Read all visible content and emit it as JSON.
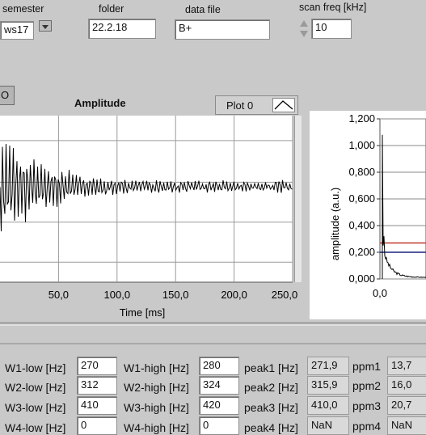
{
  "top": {
    "semester_label": "semester",
    "semester_value": "ws17",
    "folder_label": "folder",
    "folder_value": "22.2.18",
    "datafile_label": "data file",
    "datafile_value": "B+",
    "scanfreq_label": "scan freq [kHz]",
    "scanfreq_value": "10"
  },
  "stop_button_label": "O",
  "amplitude_chart": {
    "title": "Amplitude",
    "legend_label": "Plot 0",
    "chart_data": {
      "type": "line",
      "title": "Amplitude",
      "xlabel": "Time [ms]",
      "ylabel": "",
      "x_ticks": [
        "50,0",
        "100,0",
        "150,0",
        "200,0",
        "250,0"
      ],
      "xlim": [
        0,
        250
      ],
      "series": [
        {
          "name": "Plot 0",
          "description_shape": "damped oscillation settling to constant level"
        }
      ],
      "grid": true
    }
  },
  "spectrum_chart": {
    "chart_data": {
      "type": "line",
      "ylabel": "amplitude (a.u.)",
      "y_ticks": [
        "1,200",
        "1,000",
        "0,800",
        "0,600",
        "0,400",
        "0,200",
        "0,000"
      ],
      "ylim": [
        0,
        1.2
      ],
      "x_ticks": [
        "0,0"
      ],
      "markers": [
        {
          "y": 0.27,
          "color": "#c0392b"
        },
        {
          "y": 0.2,
          "color": "#1a237e"
        }
      ],
      "grid": true
    }
  },
  "windows": [
    {
      "low_label": "W1-low [Hz]",
      "low": "270",
      "high_label": "W1-high [Hz]",
      "high": "280",
      "peak_label": "peak1 [Hz]",
      "peak": "271,9",
      "ppm_label": "ppm1",
      "ppm": "13,7"
    },
    {
      "low_label": "W2-low [Hz]",
      "low": "312",
      "high_label": "W2-high [Hz]",
      "high": "324",
      "peak_label": "peak2 [Hz]",
      "peak": "315,9",
      "ppm_label": "ppm2",
      "ppm": "16,0"
    },
    {
      "low_label": "W3-low [Hz]",
      "low": "410",
      "high_label": "W3-high [Hz]",
      "high": "420",
      "peak_label": "peak3 [Hz]",
      "peak": "410,0",
      "ppm_label": "ppm3",
      "ppm": "20,7"
    },
    {
      "low_label": "W4-low [Hz]",
      "low": "0",
      "high_label": "W4-high [Hz]",
      "high": "0",
      "peak_label": "peak4 [Hz]",
      "peak": "NaN",
      "ppm_label": "ppm4",
      "ppm": "NaN"
    }
  ]
}
